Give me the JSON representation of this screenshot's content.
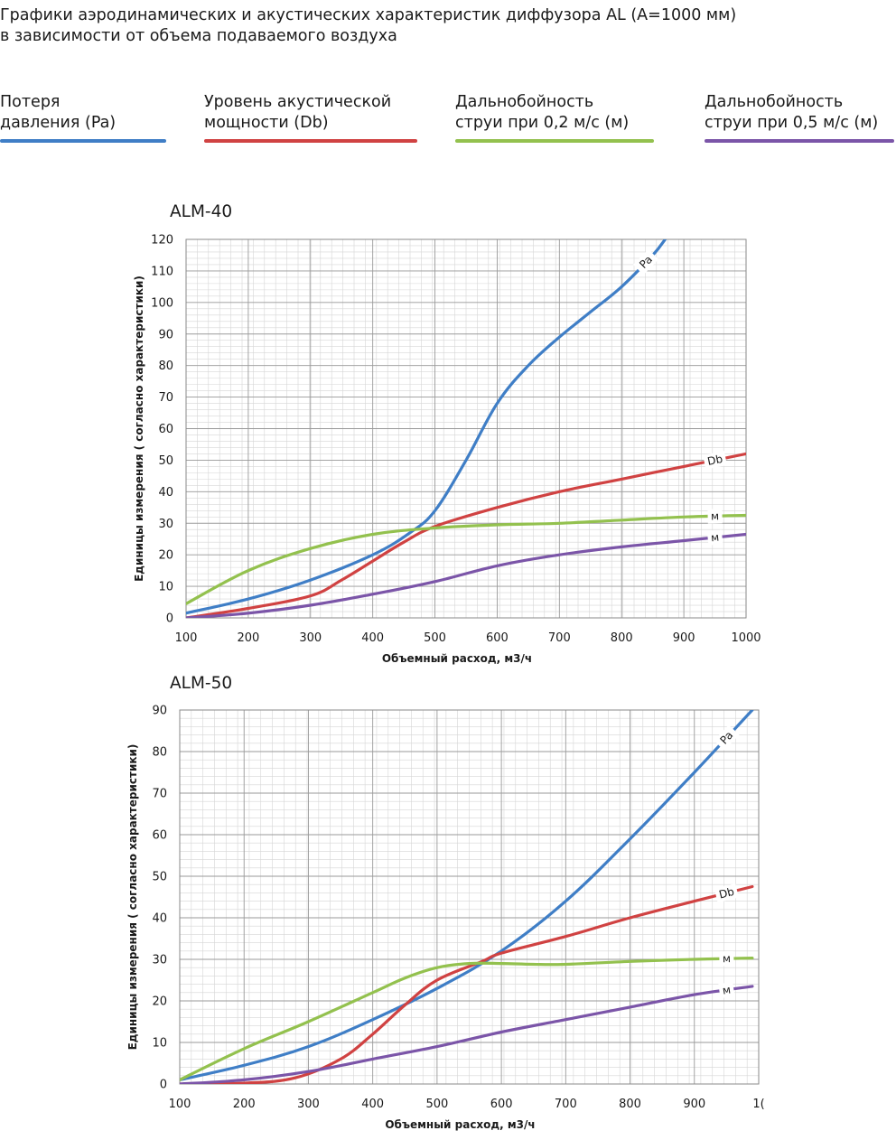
{
  "title": {
    "line1": "Графики аэродинамических и акустических характеристик  диффузора AL (А=1000 мм)",
    "line2": "в зависимости от объема подаваемого воздуха"
  },
  "legend": [
    {
      "line1": "Потеря",
      "line2": "давления (Pa)",
      "color": "#3f7ec6"
    },
    {
      "line1": "Уровень акустической",
      "line2": "мощности (Db)",
      "color": "#d04242"
    },
    {
      "line1": "Дальнобойность",
      "line2": "струи при 0,2 м/с (м)",
      "color": "#93c14e"
    },
    {
      "line1": "Дальнобойность",
      "line2": "струи при 0,5 м/с (м)",
      "color": "#7b55a8"
    }
  ],
  "chart_data": [
    {
      "type": "line",
      "title": "ALM-40",
      "xlabel": "Объемный расход, м3/ч",
      "ylabel": "Единицы измерения ( согласно характеристики)",
      "xlim": [
        100,
        1000
      ],
      "ylim": [
        0,
        120
      ],
      "x_ticks": [
        "100",
        "200",
        "300",
        "400",
        "500",
        "600",
        "700",
        "800",
        "900",
        "1000"
      ],
      "y_ticks": [
        "0",
        "10",
        "20",
        "30",
        "40",
        "50",
        "60",
        "70",
        "80",
        "90",
        "100",
        "110",
        "120"
      ],
      "grid": true,
      "series": [
        {
          "name": "Pa",
          "color": "#3f7ec6",
          "x": [
            100,
            200,
            300,
            400,
            460,
            500,
            550,
            600,
            650,
            700,
            750,
            800,
            850,
            870
          ],
          "y": [
            1.5,
            6,
            12,
            20,
            27,
            34,
            50,
            68,
            80,
            89,
            97,
            105,
            115,
            120
          ]
        },
        {
          "name": "Db",
          "color": "#d04242",
          "x": [
            100,
            200,
            300,
            350,
            400,
            450,
            500,
            600,
            700,
            800,
            900,
            1000
          ],
          "y": [
            0,
            3,
            7,
            12,
            18,
            24,
            29,
            35,
            40,
            44,
            48,
            52
          ]
        },
        {
          "name": "м",
          "color": "#93c14e",
          "x": [
            100,
            200,
            300,
            400,
            500,
            600,
            700,
            800,
            900,
            1000
          ],
          "y": [
            4.5,
            15,
            22,
            26.5,
            28.5,
            29.5,
            30,
            31,
            32,
            32.5
          ]
        },
        {
          "name": "м",
          "color": "#7b55a8",
          "x": [
            100,
            200,
            300,
            400,
            500,
            600,
            700,
            800,
            900,
            1000
          ],
          "y": [
            0,
            1.5,
            4,
            7.5,
            11.5,
            16.5,
            20,
            22.5,
            24.5,
            26.5
          ]
        }
      ]
    },
    {
      "type": "line",
      "title": "ALM-50",
      "xlabel": "Объемный расход, м3/ч",
      "ylabel": "Единицы измерения ( согласно характеристики)",
      "xlim": [
        100,
        1000
      ],
      "ylim": [
        0,
        90
      ],
      "x_ticks": [
        "100",
        "200",
        "300",
        "400",
        "500",
        "600",
        "700",
        "800",
        "900",
        "1("
      ],
      "y_ticks": [
        "0",
        "10",
        "20",
        "30",
        "40",
        "50",
        "60",
        "70",
        "80",
        "90"
      ],
      "grid": true,
      "series": [
        {
          "name": "Pa",
          "color": "#3f7ec6",
          "x": [
            100,
            200,
            300,
            400,
            500,
            600,
            700,
            800,
            900,
            990
          ],
          "y": [
            1,
            4.5,
            9,
            15.5,
            23,
            32,
            44,
            59,
            75,
            90
          ]
        },
        {
          "name": "Db",
          "color": "#d04242",
          "x": [
            100,
            200,
            280,
            350,
            400,
            450,
            500,
            570,
            600,
            700,
            800,
            900,
            990
          ],
          "y": [
            0,
            0.2,
            1.5,
            6,
            12,
            19,
            25,
            29.5,
            31.5,
            35.5,
            40,
            44,
            47.5
          ]
        },
        {
          "name": "м",
          "color": "#93c14e",
          "x": [
            100,
            200,
            300,
            400,
            450,
            500,
            550,
            600,
            650,
            700,
            800,
            900,
            990
          ],
          "y": [
            1,
            8.5,
            15,
            22,
            25.5,
            28,
            29,
            29,
            28.8,
            28.8,
            29.5,
            30,
            30.3
          ]
        },
        {
          "name": "м",
          "color": "#7b55a8",
          "x": [
            100,
            200,
            300,
            400,
            500,
            600,
            700,
            800,
            900,
            990
          ],
          "y": [
            0,
            1,
            3,
            6,
            9,
            12.5,
            15.5,
            18.5,
            21.5,
            23.5
          ]
        }
      ]
    }
  ]
}
